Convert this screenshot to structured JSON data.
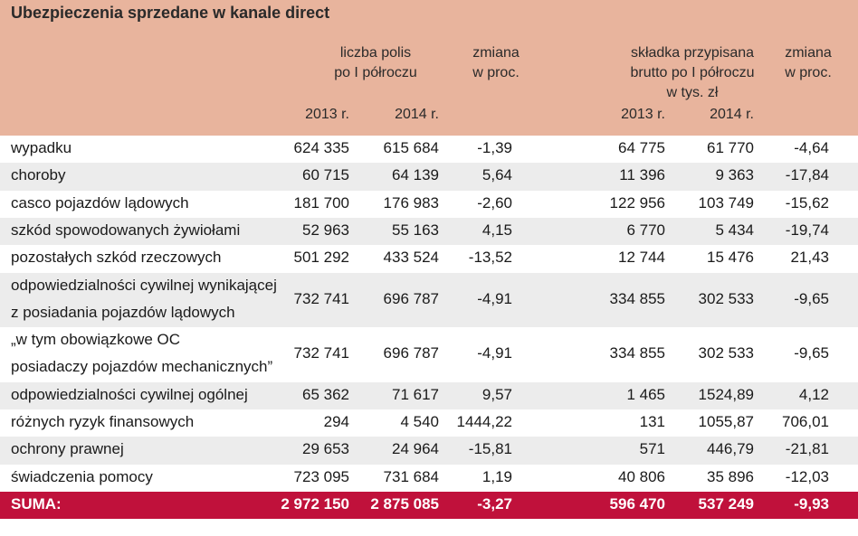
{
  "chart_data": {
    "type": "table",
    "title": "Ubezpieczenia sprzedane w kanale direct",
    "column_groups": [
      {
        "label_lines": [
          "liczba polis",
          "po I półroczu"
        ]
      },
      {
        "label_lines": [
          "zmiana",
          "w proc."
        ]
      },
      {
        "label_lines": [
          "składka przypisana",
          "brutto po I półroczu",
          "w tys. zł"
        ]
      },
      {
        "label_lines": [
          "zmiana",
          "w proc."
        ]
      }
    ],
    "years": [
      "2013 r.",
      "2014 r.",
      "2013 r.",
      "2014 r."
    ],
    "rows": [
      {
        "label_lines": [
          "wypadku"
        ],
        "values": [
          "624 335",
          "615 684",
          "-1,39",
          "64 775",
          "61 770",
          "-4,64"
        ]
      },
      {
        "label_lines": [
          "choroby"
        ],
        "values": [
          "60 715",
          "64 139",
          "5,64",
          "11 396",
          "9 363",
          "-17,84"
        ]
      },
      {
        "label_lines": [
          "casco pojazdów lądowych"
        ],
        "values": [
          "181 700",
          "176 983",
          "-2,60",
          "122 956",
          "103 749",
          "-15,62"
        ]
      },
      {
        "label_lines": [
          "szkód spowodowanych żywiołami"
        ],
        "values": [
          "52 963",
          "55 163",
          "4,15",
          "6 770",
          "5 434",
          "-19,74"
        ]
      },
      {
        "label_lines": [
          "pozostałych szkód rzeczowych"
        ],
        "values": [
          "501 292",
          "433 524",
          "-13,52",
          "12 744",
          "15 476",
          "21,43"
        ]
      },
      {
        "label_lines": [
          "odpowiedzialności cywilnej wynikającej",
          "z posiadania pojazdów lądowych"
        ],
        "values": [
          "732 741",
          "696 787",
          "-4,91",
          "334 855",
          "302 533",
          "-9,65"
        ]
      },
      {
        "label_lines": [
          "„w tym obowiązkowe OC",
          "posiadaczy pojazdów mechanicznych”"
        ],
        "values": [
          "732 741",
          "696 787",
          "-4,91",
          "334 855",
          "302 533",
          "-9,65"
        ]
      },
      {
        "label_lines": [
          "odpowiedzialności cywilnej ogólnej"
        ],
        "values": [
          "65 362",
          "71 617",
          "9,57",
          "1 465",
          "1524,89",
          "4,12"
        ]
      },
      {
        "label_lines": [
          "różnych ryzyk finansowych"
        ],
        "values": [
          "294",
          "4 540",
          "1444,22",
          "131",
          "1055,87",
          "706,01"
        ]
      },
      {
        "label_lines": [
          "ochrony prawnej"
        ],
        "values": [
          "29 653",
          "24 964",
          "-15,81",
          "571",
          "446,79",
          "-21,81"
        ]
      },
      {
        "label_lines": [
          "świadczenia pomocy"
        ],
        "values": [
          "723 095",
          "731 684",
          "1,19",
          "40 806",
          "35 896",
          "-12,03"
        ]
      }
    ],
    "total": {
      "label": "SUMA:",
      "values": [
        "2 972 150",
        "2 875 085",
        "-3,27",
        "596 470",
        "537 249",
        "-9,93"
      ]
    }
  },
  "colors": {
    "header_bg": "#e8b49d",
    "alt_row_bg": "#ececec",
    "sum_bg": "#c0113b",
    "sum_text": "#ffffff"
  }
}
